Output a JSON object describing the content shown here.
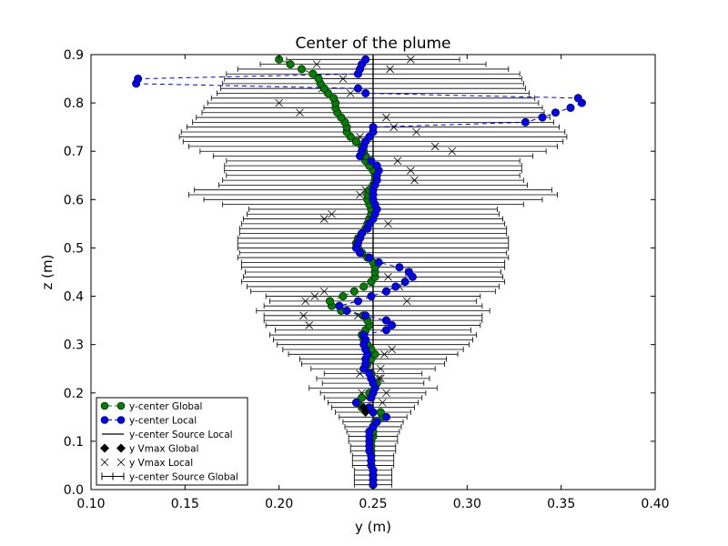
{
  "chart_data": {
    "type": "scatter",
    "title": "Center of the plume",
    "xlabel": "y (m)",
    "ylabel": "z (m)",
    "xlim": [
      0.1,
      0.4
    ],
    "ylim": [
      0.0,
      0.9
    ],
    "xticks": [
      "0.10",
      "0.15",
      "0.20",
      "0.25",
      "0.30",
      "0.35",
      "0.40"
    ],
    "yticks": [
      "0.0",
      "0.1",
      "0.2",
      "0.3",
      "0.4",
      "0.5",
      "0.6",
      "0.7",
      "0.8",
      "0.9"
    ],
    "grid": false,
    "legend_position": "lower-left",
    "source_local_y": 0.25,
    "z": [
      0.01,
      0.02,
      0.03,
      0.04,
      0.05,
      0.06,
      0.07,
      0.08,
      0.09,
      0.1,
      0.11,
      0.12,
      0.13,
      0.14,
      0.15,
      0.16,
      0.17,
      0.18,
      0.19,
      0.2,
      0.21,
      0.22,
      0.23,
      0.24,
      0.25,
      0.26,
      0.27,
      0.28,
      0.29,
      0.3,
      0.31,
      0.32,
      0.33,
      0.34,
      0.35,
      0.36,
      0.37,
      0.38,
      0.39,
      0.4,
      0.41,
      0.42,
      0.43,
      0.44,
      0.45,
      0.46,
      0.47,
      0.48,
      0.49,
      0.5,
      0.51,
      0.52,
      0.53,
      0.54,
      0.55,
      0.56,
      0.57,
      0.58,
      0.59,
      0.6,
      0.61,
      0.62,
      0.63,
      0.64,
      0.65,
      0.66,
      0.67,
      0.68,
      0.69,
      0.7,
      0.71,
      0.72,
      0.73,
      0.74,
      0.75,
      0.76,
      0.77,
      0.78,
      0.79,
      0.8,
      0.81,
      0.82,
      0.83,
      0.84,
      0.85,
      0.86,
      0.87,
      0.88,
      0.89
    ],
    "series": [
      {
        "name": "y-center Global",
        "color": "#008000",
        "values": [
          0.25,
          0.25,
          0.25,
          0.25,
          0.249,
          0.249,
          0.249,
          0.249,
          0.249,
          0.249,
          0.25,
          0.25,
          0.25,
          0.251,
          0.255,
          0.254,
          0.244,
          0.242,
          0.244,
          0.248,
          0.251,
          0.252,
          0.249,
          0.249,
          0.246,
          0.247,
          0.249,
          0.251,
          0.249,
          0.247,
          0.245,
          0.244,
          0.246,
          0.248,
          0.247,
          0.245,
          0.233,
          0.228,
          0.227,
          0.234,
          0.24,
          0.245,
          0.249,
          0.251,
          0.251,
          0.251,
          0.25,
          0.247,
          0.244,
          0.242,
          0.241,
          0.242,
          0.244,
          0.246,
          0.247,
          0.248,
          0.249,
          0.249,
          0.248,
          0.247,
          0.247,
          0.248,
          0.25,
          0.251,
          0.251,
          0.25,
          0.248,
          0.246,
          0.246,
          0.245,
          0.244,
          0.241,
          0.238,
          0.236,
          0.236,
          0.235,
          0.233,
          0.231,
          0.23,
          0.23,
          0.229,
          0.226,
          0.224,
          0.222,
          0.221,
          0.218,
          0.212,
          0.206,
          0.2
        ]
      },
      {
        "name": "y-center Local",
        "color": "#0000ff",
        "values": [
          0.25,
          0.25,
          0.25,
          0.25,
          0.249,
          0.249,
          0.249,
          0.248,
          0.248,
          0.248,
          0.248,
          0.248,
          0.25,
          0.252,
          0.257,
          0.25,
          0.248,
          0.241,
          0.249,
          0.25,
          0.251,
          0.25,
          0.249,
          0.248,
          0.245,
          0.246,
          0.246,
          0.247,
          0.246,
          0.245,
          0.246,
          0.245,
          0.257,
          0.26,
          0.257,
          0.246,
          0.236,
          0.232,
          0.242,
          0.249,
          0.257,
          0.262,
          0.267,
          0.271,
          0.269,
          0.264,
          0.253,
          0.248,
          0.243,
          0.241,
          0.242,
          0.243,
          0.244,
          0.247,
          0.248,
          0.25,
          0.251,
          0.252,
          0.251,
          0.25,
          0.25,
          0.25,
          0.251,
          0.252,
          0.252,
          0.253,
          0.252,
          0.249,
          0.243,
          0.244,
          0.245,
          0.246,
          0.248,
          0.25,
          0.25,
          0.331,
          0.34,
          0.347,
          0.355,
          0.361,
          0.359,
          0.246,
          0.242,
          0.124,
          0.125,
          0.242,
          0.243,
          0.244,
          0.246
        ]
      }
    ],
    "source_global_xerr": [
      0.01,
      0.01,
      0.01,
      0.01,
      0.011,
      0.011,
      0.011,
      0.012,
      0.012,
      0.013,
      0.013,
      0.014,
      0.015,
      0.016,
      0.018,
      0.02,
      0.022,
      0.024,
      0.026,
      0.028,
      0.034,
      0.027,
      0.03,
      0.026,
      0.033,
      0.038,
      0.039,
      0.045,
      0.048,
      0.051,
      0.053,
      0.055,
      0.052,
      0.057,
      0.058,
      0.058,
      0.062,
      0.058,
      0.055,
      0.057,
      0.065,
      0.067,
      0.07,
      0.069,
      0.068,
      0.07,
      0.07,
      0.072,
      0.071,
      0.072,
      0.072,
      0.072,
      0.071,
      0.071,
      0.07,
      0.069,
      0.067,
      0.066,
      0.08,
      0.09,
      0.098,
      0.095,
      0.082,
      0.08,
      0.078,
      0.079,
      0.079,
      0.078,
      0.085,
      0.092,
      0.098,
      0.101,
      0.103,
      0.102,
      0.099,
      0.096,
      0.094,
      0.091,
      0.09,
      0.088,
      0.086,
      0.083,
      0.081,
      0.08,
      0.079,
      0.078,
      0.072,
      0.06,
      0.046
    ],
    "vmax_local": [
      [
        0.246,
        0.19
      ],
      [
        0.253,
        0.23
      ],
      [
        0.254,
        0.25
      ],
      [
        0.256,
        0.28
      ],
      [
        0.26,
        0.29
      ],
      [
        0.243,
        0.24
      ],
      [
        0.247,
        0.26
      ],
      [
        0.242,
        0.36
      ],
      [
        0.268,
        0.39
      ],
      [
        0.264,
        0.42
      ],
      [
        0.258,
        0.44
      ],
      [
        0.269,
        0.45
      ],
      [
        0.258,
        0.55
      ],
      [
        0.224,
        0.56
      ],
      [
        0.228,
        0.57
      ],
      [
        0.243,
        0.61
      ],
      [
        0.246,
        0.62
      ],
      [
        0.272,
        0.64
      ],
      [
        0.27,
        0.66
      ],
      [
        0.263,
        0.68
      ],
      [
        0.292,
        0.7
      ],
      [
        0.283,
        0.71
      ],
      [
        0.241,
        0.72
      ],
      [
        0.243,
        0.73
      ],
      [
        0.273,
        0.74
      ],
      [
        0.261,
        0.75
      ],
      [
        0.257,
        0.77
      ],
      [
        0.211,
        0.78
      ],
      [
        0.2,
        0.8
      ],
      [
        0.238,
        0.82
      ],
      [
        0.223,
        0.83
      ],
      [
        0.234,
        0.85
      ],
      [
        0.259,
        0.87
      ],
      [
        0.22,
        0.88
      ],
      [
        0.27,
        0.89
      ],
      [
        0.216,
        0.34
      ],
      [
        0.213,
        0.36
      ],
      [
        0.214,
        0.39
      ],
      [
        0.219,
        0.4
      ],
      [
        0.224,
        0.41
      ],
      [
        0.254,
        0.23
      ],
      [
        0.257,
        0.2
      ],
      [
        0.255,
        0.18
      ],
      [
        0.244,
        0.2
      ]
    ],
    "vmax_global": [
      [
        0.245,
        0.17
      ],
      [
        0.246,
        0.16
      ]
    ],
    "legend": [
      {
        "label": "y-center Global",
        "kind": "circle-dashed",
        "color": "#008000"
      },
      {
        "label": "y-center Local",
        "kind": "circle-dashed",
        "color": "#0000ff"
      },
      {
        "label": "y-center Source Local",
        "kind": "line",
        "color": "#000000"
      },
      {
        "label": "y Vmax Global",
        "kind": "diamond",
        "color": "#000000"
      },
      {
        "label": "y Vmax Local",
        "kind": "x",
        "color": "#000000"
      },
      {
        "label": "y-center Source Global",
        "kind": "errorbar",
        "color": "#000000"
      }
    ]
  }
}
